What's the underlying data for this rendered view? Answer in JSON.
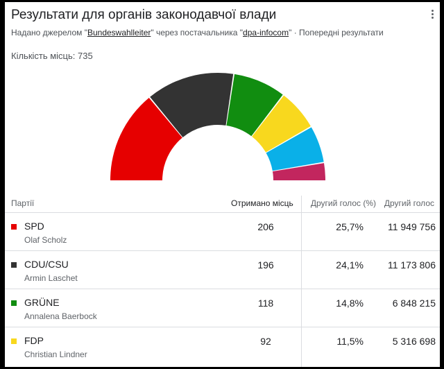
{
  "header": {
    "title": "Результати для органів законодавчої влади",
    "source_prefix": "Надано джерелом \"",
    "source_link": "Bundeswahlleiter",
    "source_mid": "\" через постачальника \"",
    "provider_link": "dpa-infocom",
    "source_suffix": "\" · Попередні результати"
  },
  "summary": {
    "total_seats_label": "Кількість місць: 735"
  },
  "table": {
    "headers": {
      "party": "Партії",
      "seats": "Отримано місць",
      "second_vote_pct": "Другий голос (%)",
      "second_vote": "Другий голос"
    },
    "rows": [
      {
        "party": "SPD",
        "leader": "Olaf Scholz",
        "seats": "206",
        "pct": "25,7%",
        "votes": "11 949 756",
        "color": "#e60000"
      },
      {
        "party": "CDU/CSU",
        "leader": "Armin Laschet",
        "seats": "196",
        "pct": "24,1%",
        "votes": "11 173 806",
        "color": "#333333"
      },
      {
        "party": "GRÜNE",
        "leader": "Annalena Baerbock",
        "seats": "118",
        "pct": "14,8%",
        "votes": "6 848 215",
        "color": "#118d10"
      },
      {
        "party": "FDP",
        "leader": "Christian Lindner",
        "seats": "92",
        "pct": "11,5%",
        "votes": "5 316 698",
        "color": "#f8d81e"
      }
    ]
  },
  "chart_data": {
    "type": "pie",
    "total": 735,
    "segments": [
      {
        "party": "SPD",
        "seats": 206,
        "color": "#e60000"
      },
      {
        "party": "CDU/CSU",
        "seats": 196,
        "color": "#333333"
      },
      {
        "party": "GRÜNE",
        "seats": 118,
        "color": "#118d10"
      },
      {
        "party": "FDP",
        "seats": 92,
        "color": "#f8d81e"
      },
      {
        "party": "",
        "seats": 83,
        "color": "#0ab0e8"
      },
      {
        "party": "",
        "seats": 39,
        "color": "#c2265e"
      }
    ]
  }
}
